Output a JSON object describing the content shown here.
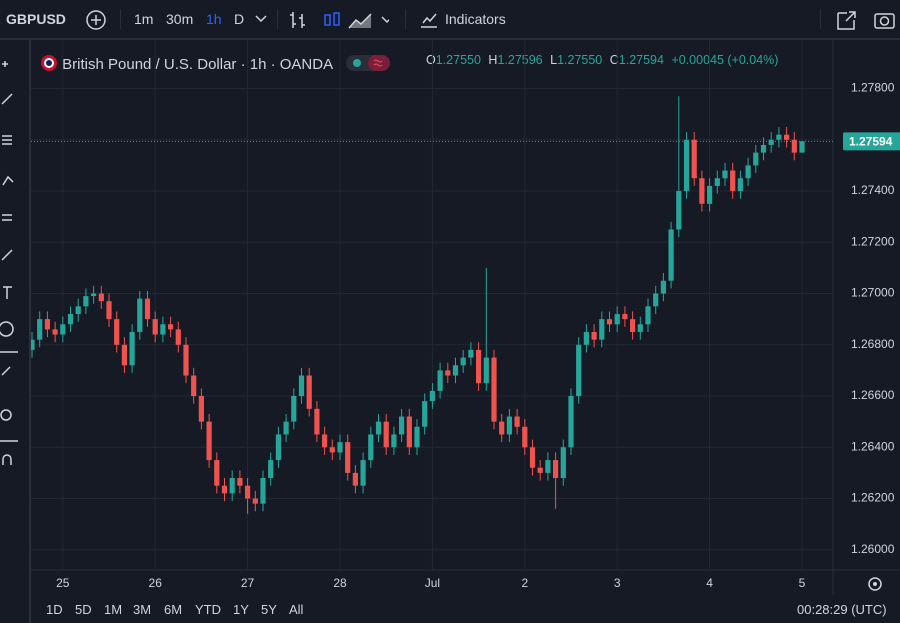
{
  "toolbar": {
    "symbol": "GBPUSD",
    "intervals": [
      "1m",
      "30m",
      "1h",
      "D"
    ],
    "indicators": "Indicators"
  },
  "bottom_bar": {
    "ranges": [
      "1D",
      "5D",
      "1M",
      "3M",
      "6M",
      "YTD",
      "1Y",
      "5Y",
      "All"
    ],
    "clock": "00:28:29 (UTC)"
  },
  "legend": {
    "title": "British Pound / U.S. Dollar · 1h · OANDA",
    "ohlc": [
      {
        "key": "O",
        "value": "1.27550"
      },
      {
        "key": "H",
        "value": "1.27596"
      },
      {
        "key": "L",
        "value": "1.27550"
      },
      {
        "key": "C",
        "value": "1.27594"
      }
    ],
    "change": "+0.00045 (+0.04%)"
  },
  "chart_data": {
    "type": "candlestick",
    "up_color": "#26a69a",
    "down_color": "#ef5350",
    "grid": true,
    "categories": [
      null,
      null,
      null,
      null,
      "25",
      null,
      null,
      null,
      null,
      null,
      null,
      null,
      null,
      null,
      null,
      null,
      "26",
      null,
      null,
      null,
      null,
      null,
      null,
      null,
      null,
      null,
      null,
      null,
      "27",
      null,
      null,
      null,
      null,
      null,
      null,
      null,
      null,
      null,
      null,
      null,
      "28",
      null,
      null,
      null,
      null,
      null,
      null,
      null,
      null,
      null,
      null,
      null,
      "Jul",
      null,
      null,
      null,
      null,
      null,
      null,
      null,
      null,
      null,
      null,
      null,
      "2",
      null,
      null,
      null,
      null,
      null,
      null,
      null,
      null,
      null,
      null,
      null,
      "3",
      null,
      null,
      null,
      null,
      null,
      null,
      null,
      null,
      null,
      null,
      null,
      "4",
      null,
      null,
      null,
      null,
      null,
      null,
      null,
      null,
      null,
      null,
      null,
      "5"
    ],
    "open": [
      1.2678,
      1.2682,
      1.269,
      1.2686,
      1.2684,
      1.2688,
      1.2692,
      1.2695,
      1.2699,
      1.27,
      1.2697,
      1.269,
      1.268,
      1.2672,
      1.2685,
      1.2698,
      1.269,
      1.2684,
      1.2688,
      1.2686,
      1.268,
      1.2668,
      1.266,
      1.265,
      1.2635,
      1.2625,
      1.2622,
      1.2628,
      1.2625,
      1.262,
      1.2618,
      1.2628,
      1.2635,
      1.2645,
      1.265,
      1.266,
      1.2668,
      1.2655,
      1.2645,
      1.264,
      1.2638,
      1.2642,
      1.263,
      1.2625,
      1.2635,
      1.2645,
      1.265,
      1.264,
      1.2645,
      1.2652,
      1.264,
      1.2648,
      1.2658,
      1.2662,
      1.267,
      1.2668,
      1.2672,
      1.2675,
      1.2678,
      1.2665,
      1.2675,
      1.265,
      1.2645,
      1.2652,
      1.2648,
      1.264,
      1.2632,
      1.263,
      1.2635,
      1.2628,
      1.264,
      1.266,
      1.268,
      1.2685,
      1.2682,
      1.269,
      1.2688,
      1.2692,
      1.269,
      1.2685,
      1.2688,
      1.2695,
      1.27,
      1.2705,
      1.2725,
      1.274,
      1.276,
      1.2745,
      1.2735,
      1.2742,
      1.2745,
      1.2748,
      1.274,
      1.2745,
      1.275,
      1.2755,
      1.2758,
      1.276,
      1.2762,
      1.276,
      1.2755
    ],
    "high": [
      1.2685,
      1.2693,
      1.2693,
      1.2689,
      1.2691,
      1.2695,
      1.2698,
      1.2702,
      1.2703,
      1.2703,
      1.27,
      1.2693,
      1.2683,
      1.2688,
      1.2701,
      1.2701,
      1.2693,
      1.2691,
      1.2691,
      1.2689,
      1.2683,
      1.2671,
      1.2663,
      1.2653,
      1.2638,
      1.2628,
      1.2631,
      1.2631,
      1.2628,
      1.2623,
      1.2631,
      1.2638,
      1.2648,
      1.2653,
      1.2663,
      1.2671,
      1.2671,
      1.2658,
      1.2648,
      1.2643,
      1.2645,
      1.2645,
      1.2633,
      1.2638,
      1.2648,
      1.2653,
      1.2653,
      1.2648,
      1.2655,
      1.2655,
      1.2651,
      1.2661,
      1.2665,
      1.2673,
      1.2673,
      1.2675,
      1.2678,
      1.2681,
      1.2681,
      1.271,
      1.2678,
      1.2653,
      1.2655,
      1.2655,
      1.2651,
      1.2643,
      1.2635,
      1.2638,
      1.2638,
      1.2643,
      1.2663,
      1.2683,
      1.2688,
      1.2688,
      1.2693,
      1.2693,
      1.2695,
      1.2695,
      1.2693,
      1.2691,
      1.2698,
      1.2703,
      1.2708,
      1.2728,
      1.2777,
      1.2763,
      1.2763,
      1.2748,
      1.2745,
      1.2748,
      1.2751,
      1.2751,
      1.2748,
      1.2753,
      1.2758,
      1.2761,
      1.2763,
      1.2765,
      1.2765,
      1.2763,
      1.27596
    ],
    "low": [
      1.2675,
      1.2679,
      1.2683,
      1.2681,
      1.2681,
      1.2685,
      1.2689,
      1.2692,
      1.2696,
      1.2694,
      1.2687,
      1.2677,
      1.2669,
      1.2669,
      1.2682,
      1.2687,
      1.2681,
      1.2681,
      1.2683,
      1.2677,
      1.2665,
      1.2657,
      1.2647,
      1.2632,
      1.2622,
      1.2619,
      1.2619,
      1.2622,
      1.2614,
      1.2615,
      1.2615,
      1.2625,
      1.2632,
      1.2642,
      1.2647,
      1.2657,
      1.2652,
      1.2642,
      1.2637,
      1.2635,
      1.2635,
      1.2627,
      1.2622,
      1.2622,
      1.2632,
      1.2642,
      1.2637,
      1.2637,
      1.2642,
      1.2637,
      1.2637,
      1.2645,
      1.2655,
      1.2659,
      1.2665,
      1.2665,
      1.2669,
      1.2672,
      1.2662,
      1.2662,
      1.2647,
      1.2642,
      1.2642,
      1.2645,
      1.2637,
      1.2629,
      1.2627,
      1.2627,
      1.2616,
      1.2625,
      1.2637,
      1.2657,
      1.2677,
      1.2679,
      1.2679,
      1.2685,
      1.2685,
      1.2687,
      1.2682,
      1.2682,
      1.2685,
      1.2692,
      1.2697,
      1.2702,
      1.2722,
      1.2737,
      1.2742,
      1.2732,
      1.2732,
      1.2739,
      1.2742,
      1.2737,
      1.2737,
      1.2742,
      1.2747,
      1.2752,
      1.2755,
      1.2757,
      1.2757,
      1.2752,
      1.2755
    ],
    "close": [
      1.2682,
      1.269,
      1.2686,
      1.2684,
      1.2688,
      1.2692,
      1.2695,
      1.2699,
      1.27,
      1.2697,
      1.269,
      1.268,
      1.2672,
      1.2685,
      1.2698,
      1.269,
      1.2684,
      1.2688,
      1.2686,
      1.268,
      1.2668,
      1.266,
      1.265,
      1.2635,
      1.2625,
      1.2622,
      1.2628,
      1.2625,
      1.262,
      1.2618,
      1.2628,
      1.2635,
      1.2645,
      1.265,
      1.266,
      1.2668,
      1.2655,
      1.2645,
      1.264,
      1.2638,
      1.2642,
      1.263,
      1.2625,
      1.2635,
      1.2645,
      1.265,
      1.264,
      1.2645,
      1.2652,
      1.264,
      1.2648,
      1.2658,
      1.2662,
      1.267,
      1.2668,
      1.2672,
      1.2675,
      1.2678,
      1.2665,
      1.2675,
      1.265,
      1.2645,
      1.2652,
      1.2648,
      1.264,
      1.2632,
      1.263,
      1.2635,
      1.2628,
      1.264,
      1.266,
      1.268,
      1.2685,
      1.2682,
      1.269,
      1.2688,
      1.2692,
      1.269,
      1.2685,
      1.2688,
      1.2695,
      1.27,
      1.2705,
      1.2725,
      1.274,
      1.276,
      1.2745,
      1.2735,
      1.2742,
      1.2745,
      1.2748,
      1.274,
      1.2745,
      1.275,
      1.2755,
      1.2758,
      1.276,
      1.2762,
      1.276,
      1.2755,
      1.27594
    ],
    "ylim": [
      1.2596,
      1.2797
    ],
    "yticks": [
      {
        "value": 1.26,
        "label": "1.26000"
      },
      {
        "value": 1.262,
        "label": "1.26200"
      },
      {
        "value": 1.264,
        "label": "1.26400"
      },
      {
        "value": 1.266,
        "label": "1.26600"
      },
      {
        "value": 1.268,
        "label": "1.26800"
      },
      {
        "value": 1.27,
        "label": "1.27000"
      },
      {
        "value": 1.272,
        "label": "1.27200"
      },
      {
        "value": 1.274,
        "label": "1.27400"
      },
      {
        "value": 1.276,
        "label": "1.27600"
      },
      {
        "value": 1.278,
        "label": "1.27800"
      }
    ]
  }
}
